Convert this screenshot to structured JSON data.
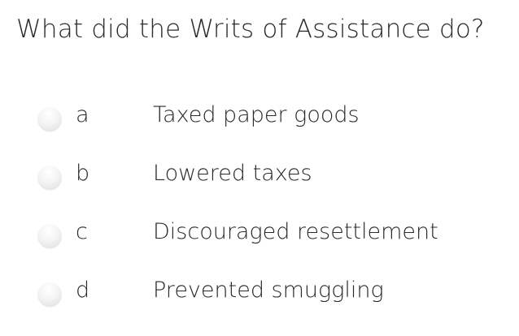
{
  "question": "What did the Writs of Assistance do?",
  "options": [
    {
      "letter": "a",
      "text": "Taxed paper goods"
    },
    {
      "letter": "b",
      "text": "Lowered taxes"
    },
    {
      "letter": "c",
      "text": "Discouraged resettlement"
    },
    {
      "letter": "d",
      "text": "Prevented smuggling"
    }
  ]
}
